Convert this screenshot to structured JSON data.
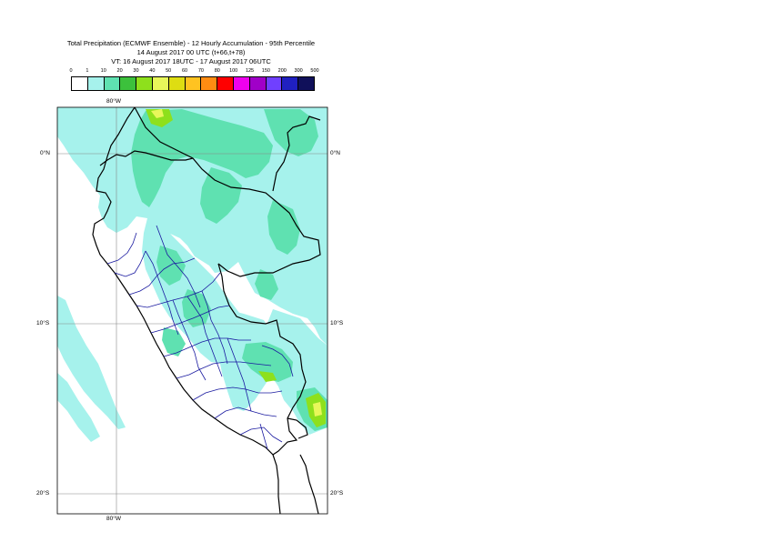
{
  "title": {
    "line1": "Total Precipitation (ECMWF Ensemble) - 12 Hourly Accumulation - 95th Percentile",
    "line2": "14 August 2017 00 UTC (t+66,t+78)",
    "line3": "VT: 16 August 2017 18UTC - 17 August 2017 06UTC"
  },
  "legend": {
    "labels": [
      "0",
      "1",
      "10",
      "20",
      "30",
      "40",
      "50",
      "60",
      "70",
      "80",
      "100",
      "125",
      "150",
      "200",
      "300",
      "500"
    ],
    "colors": [
      "#ffffff",
      "#a6f2ec",
      "#5fe1b1",
      "#3cc13c",
      "#8ee01c",
      "#e8f75a",
      "#dedd12",
      "#ffc321",
      "#ff8c12",
      "#ff0000",
      "#ee00ee",
      "#a000c8",
      "#7040ff",
      "#2020c0",
      "#10105a"
    ]
  },
  "axes": {
    "top_lon": "80°W",
    "bottom_lon": "80°W",
    "lat_left": [
      "0°N",
      "10°S",
      "20°S"
    ],
    "lat_right": [
      "0°N",
      "10°S",
      "20°S"
    ]
  },
  "colors": {
    "precip_light": "#a6f2ec",
    "precip_medium": "#5fe1b1",
    "precip_heavy": "#8ee01c",
    "precip_peak": "#e8f75a",
    "coastline": "#000000",
    "admin_borders": "#1a1aa0",
    "gridline": "#888888"
  }
}
